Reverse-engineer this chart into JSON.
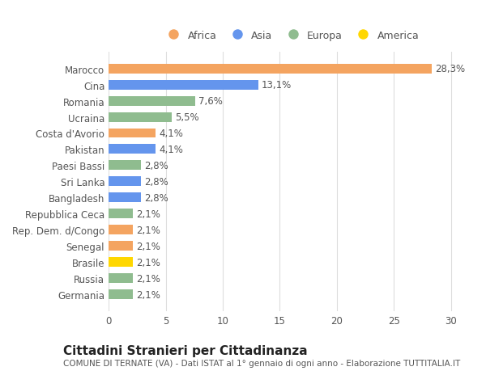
{
  "countries": [
    "Marocco",
    "Cina",
    "Romania",
    "Ucraina",
    "Costa d'Avorio",
    "Pakistan",
    "Paesi Bassi",
    "Sri Lanka",
    "Bangladesh",
    "Repubblica Ceca",
    "Rep. Dem. d/Congo",
    "Senegal",
    "Brasile",
    "Russia",
    "Germania"
  ],
  "values": [
    28.3,
    13.1,
    7.6,
    5.5,
    4.1,
    4.1,
    2.8,
    2.8,
    2.8,
    2.1,
    2.1,
    2.1,
    2.1,
    2.1,
    2.1
  ],
  "labels": [
    "28,3%",
    "13,1%",
    "7,6%",
    "5,5%",
    "4,1%",
    "4,1%",
    "2,8%",
    "2,8%",
    "2,8%",
    "2,1%",
    "2,1%",
    "2,1%",
    "2,1%",
    "2,1%",
    "2,1%"
  ],
  "continents": [
    "Africa",
    "Asia",
    "Europa",
    "Europa",
    "Africa",
    "Asia",
    "Europa",
    "Asia",
    "Asia",
    "Europa",
    "Africa",
    "Africa",
    "America",
    "Europa",
    "Europa"
  ],
  "colors": {
    "Africa": "#F4A460",
    "Asia": "#6495ED",
    "Europa": "#8FBC8F",
    "America": "#FFD700"
  },
  "xlim": [
    0,
    32
  ],
  "xticks": [
    0,
    5,
    10,
    15,
    20,
    25,
    30
  ],
  "title": "Cittadini Stranieri per Cittadinanza",
  "subtitle": "COMUNE DI TERNATE (VA) - Dati ISTAT al 1° gennaio di ogni anno - Elaborazione TUTTITALIA.IT",
  "background_color": "#ffffff",
  "bar_height": 0.6,
  "label_fontsize": 8.5,
  "tick_fontsize": 8.5,
  "title_fontsize": 11,
  "subtitle_fontsize": 7.5,
  "legend_order": [
    "Africa",
    "Asia",
    "Europa",
    "America"
  ]
}
